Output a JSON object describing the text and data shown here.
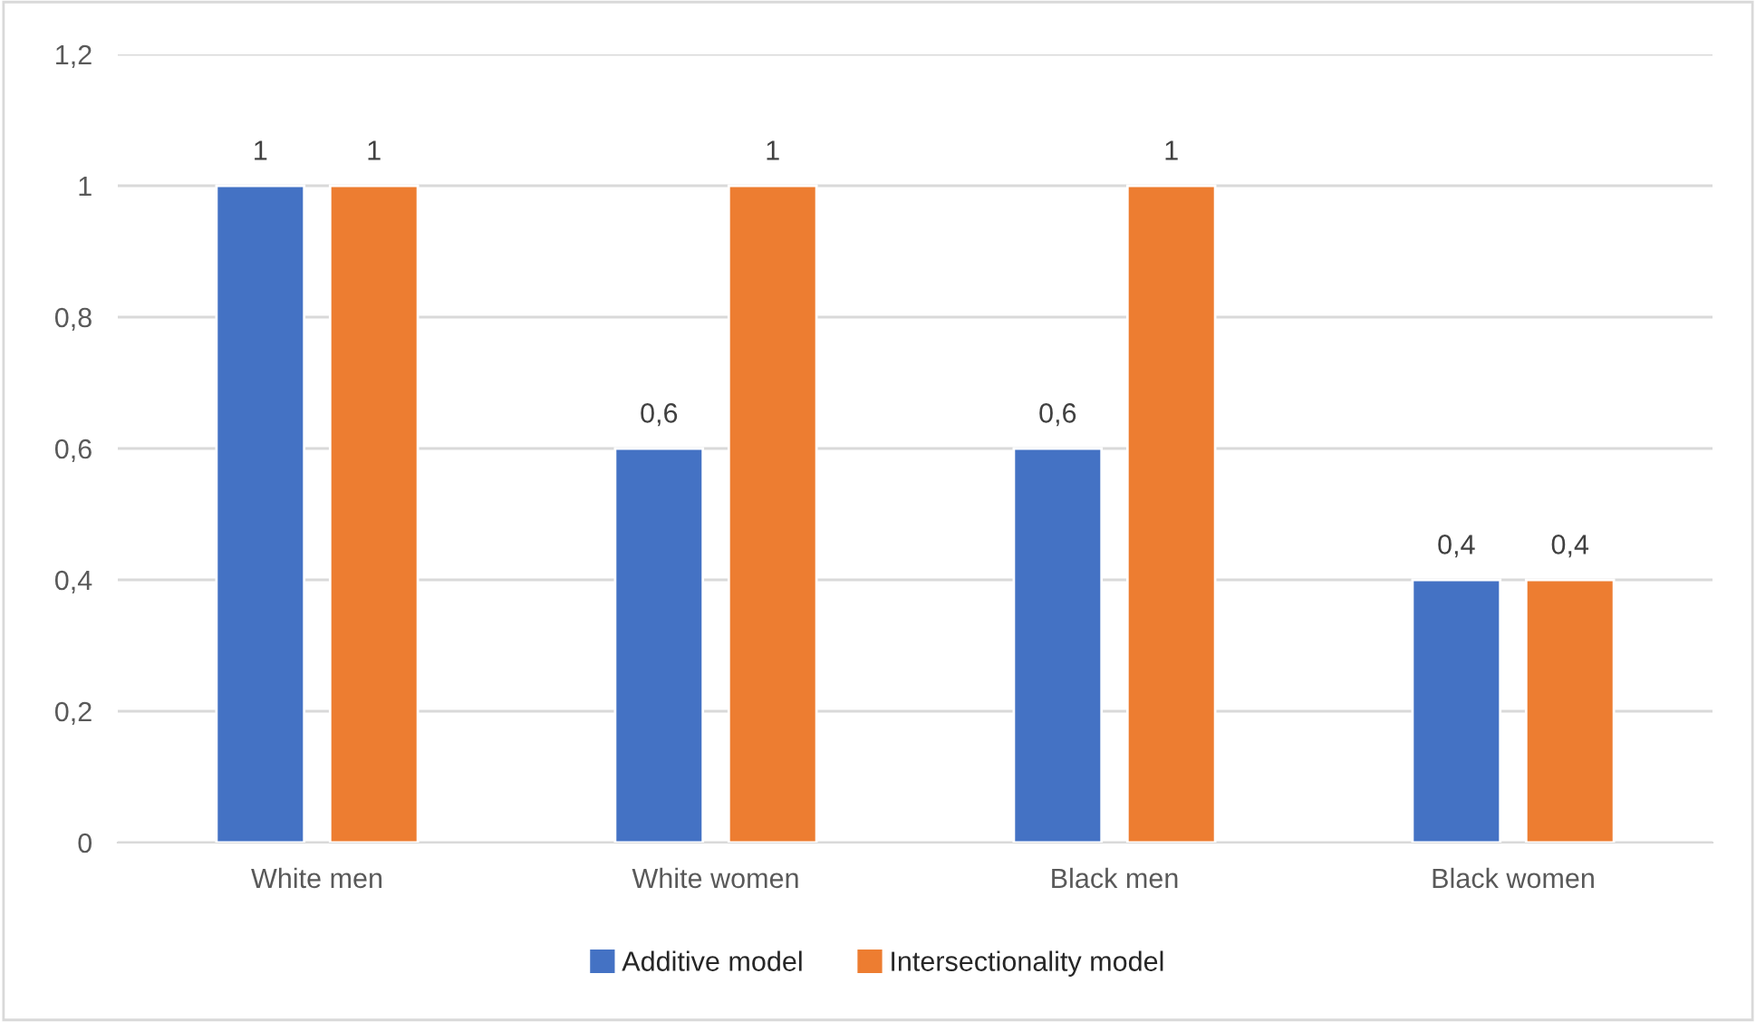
{
  "chart_data": {
    "type": "bar",
    "categories": [
      "White men",
      "White women",
      "Black men",
      "Black women"
    ],
    "series": [
      {
        "name": "Additive model",
        "color": "#4472c4",
        "values": [
          1,
          0.6,
          0.6,
          0.4
        ],
        "value_labels": [
          "1",
          "0,6",
          "0,6",
          "0,4"
        ]
      },
      {
        "name": "Intersectionality model",
        "color": "#ed7d31",
        "values": [
          1,
          1,
          1,
          0.4
        ],
        "value_labels": [
          "1",
          "1",
          "1",
          "0,4"
        ]
      }
    ],
    "ylim": [
      0,
      1.2
    ],
    "yticks": [
      0,
      {
        "value": 0.2,
        "label": "0,2"
      },
      {
        "value": 0.4,
        "label": "0,4"
      },
      {
        "value": 0.6,
        "label": "0,6"
      },
      {
        "value": 0.8,
        "label": "0,8"
      },
      1,
      {
        "value": 1.2,
        "label": "1,2"
      }
    ],
    "grid": "y",
    "legend": "bottom"
  }
}
